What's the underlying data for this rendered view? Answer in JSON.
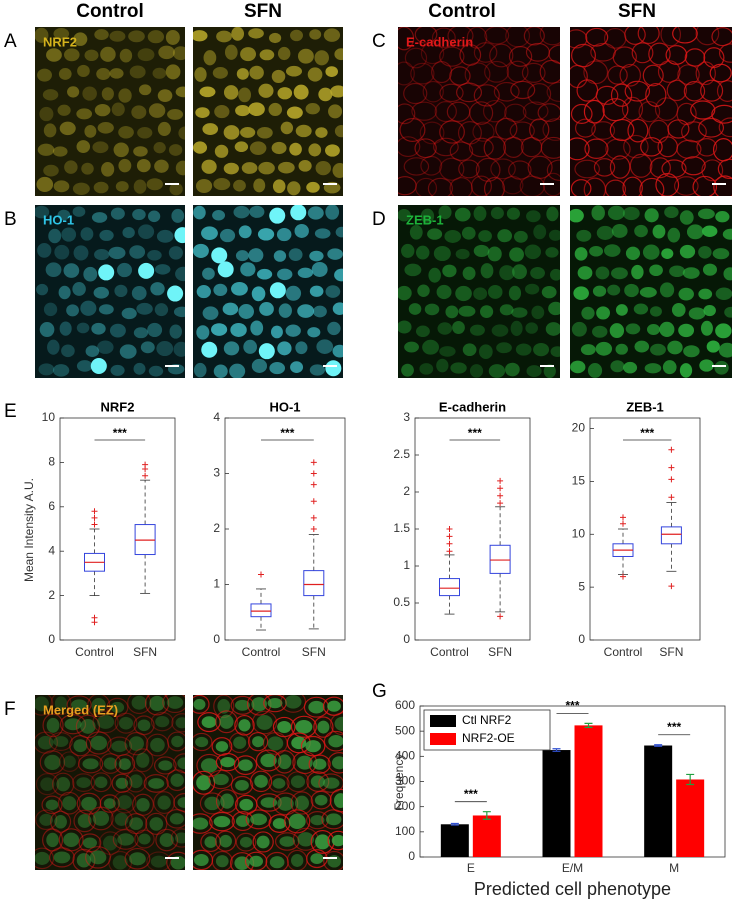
{
  "column_headers": [
    "Control",
    "SFN",
    "Control",
    "SFN"
  ],
  "panels": [
    {
      "letter": "A",
      "stain": "NRF2"
    },
    {
      "letter": "B",
      "stain": "HO-1"
    },
    {
      "letter": "C",
      "stain": "E-cadherin"
    },
    {
      "letter": "D",
      "stain": "ZEB-1"
    },
    {
      "letter": "F",
      "stain": "Merged (EZ)"
    }
  ],
  "boxplots": {
    "letter": "E",
    "ylabel": "Mean Intensity A.U.",
    "significance": "***",
    "plots": [
      {
        "title": "NRF2",
        "categories": [
          "Control",
          "SFN"
        ],
        "ylim": [
          0,
          10
        ],
        "yticks": [
          0,
          2,
          4,
          6,
          8,
          10
        ],
        "boxes": [
          {
            "min": 2.0,
            "q1": 3.1,
            "median": 3.5,
            "q3": 3.9,
            "max": 5.0,
            "outliers": [
              0.8,
              1.0,
              5.2,
              5.5,
              5.8
            ]
          },
          {
            "min": 2.1,
            "q1": 3.85,
            "median": 4.5,
            "q3": 5.2,
            "max": 7.2,
            "outliers": [
              7.4,
              7.7,
              7.9
            ]
          }
        ]
      },
      {
        "title": "HO-1",
        "categories": [
          "Control",
          "SFN"
        ],
        "ylim": [
          0,
          4
        ],
        "yticks": [
          0,
          1,
          2,
          3,
          4
        ],
        "boxes": [
          {
            "min": 0.18,
            "q1": 0.42,
            "median": 0.52,
            "q3": 0.65,
            "max": 0.92,
            "outliers": [
              1.18
            ]
          },
          {
            "min": 0.2,
            "q1": 0.8,
            "median": 1.0,
            "q3": 1.25,
            "max": 1.9,
            "outliers": [
              2.0,
              2.2,
              2.5,
              2.8,
              3.0,
              3.2
            ]
          }
        ]
      },
      {
        "title": "E-cadherin",
        "categories": [
          "Control",
          "SFN"
        ],
        "ylim": [
          0,
          3
        ],
        "yticks": [
          0,
          0.5,
          1,
          1.5,
          2,
          2.5,
          3
        ],
        "boxes": [
          {
            "min": 0.35,
            "q1": 0.6,
            "median": 0.7,
            "q3": 0.83,
            "max": 1.15,
            "outliers": [
              1.2,
              1.3,
              1.4,
              1.5
            ]
          },
          {
            "min": 0.38,
            "q1": 0.9,
            "median": 1.08,
            "q3": 1.28,
            "max": 1.8,
            "outliers": [
              0.32,
              1.85,
              1.95,
              2.05,
              2.15
            ]
          }
        ]
      },
      {
        "title": "ZEB-1",
        "categories": [
          "Control",
          "SFN"
        ],
        "ylim": [
          0,
          21
        ],
        "yticks": [
          0,
          5,
          10,
          15,
          20
        ],
        "boxes": [
          {
            "min": 6.2,
            "q1": 7.9,
            "median": 8.5,
            "q3": 9.1,
            "max": 10.5,
            "outliers": [
              6.0,
              11.0,
              11.6
            ]
          },
          {
            "min": 6.5,
            "q1": 9.1,
            "median": 10,
            "q3": 10.7,
            "max": 13,
            "outliers": [
              5.1,
              13.5,
              15.2,
              16.3,
              18
            ]
          }
        ]
      }
    ]
  },
  "bar_chart": {
    "letter": "G",
    "type": "bar",
    "xlabel": "Predicted cell phenotype",
    "ylabel": "Frequency",
    "categories": [
      "E",
      "E/M",
      "M"
    ],
    "significance": "***",
    "series": [
      {
        "name": "Ctl NRF2",
        "color": "#000000",
        "error_color": "#3050d0",
        "values": [
          130,
          425,
          443
        ],
        "errors": [
          3,
          5,
          3
        ]
      },
      {
        "name": "NRF2-OE",
        "color": "#ff0000",
        "error_color": "#20a040",
        "values": [
          165,
          523,
          308
        ],
        "errors": [
          15,
          8,
          20
        ]
      }
    ],
    "ylim": [
      0,
      600
    ],
    "yticks": [
      0,
      100,
      200,
      300,
      400,
      500,
      600
    ]
  }
}
